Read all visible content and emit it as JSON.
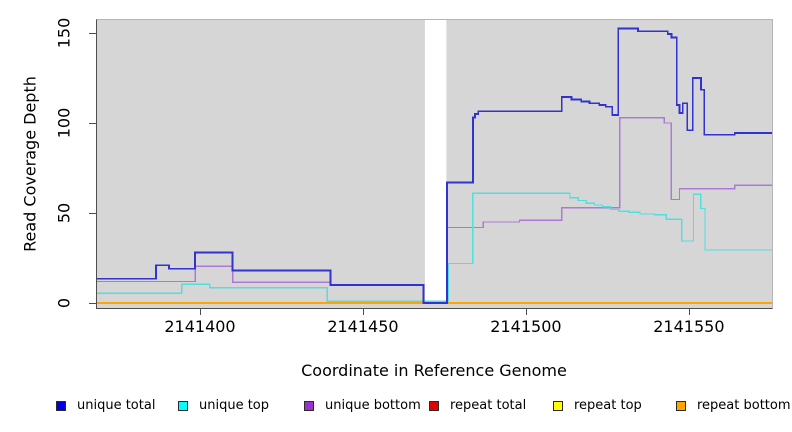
{
  "figure": {
    "ylabel": "Read Coverage Depth",
    "xlabel": "Coordinate in Reference Genome"
  },
  "axes": {
    "x": {
      "ticks": [
        {
          "label": "2141400",
          "value": 2141400
        },
        {
          "label": "2141450",
          "value": 2141450
        },
        {
          "label": "2141500",
          "value": 2141500
        },
        {
          "label": "2141550",
          "value": 2141550
        }
      ]
    },
    "y": {
      "ticks": [
        {
          "label": "0",
          "value": 0
        },
        {
          "label": "50",
          "value": 50
        },
        {
          "label": "100",
          "value": 100
        },
        {
          "label": "150",
          "value": 150
        }
      ]
    }
  },
  "legend": {
    "items": [
      {
        "label": "unique total",
        "swatch_color": "#0000e0"
      },
      {
        "label": "unique top",
        "swatch_color": "#00ffff"
      },
      {
        "label": "unique bottom",
        "swatch_color": "#9933cc"
      },
      {
        "label": "repeat total",
        "swatch_color": "#e00000"
      },
      {
        "label": "repeat top",
        "swatch_color": "#ffff00"
      },
      {
        "label": "repeat bottom",
        "swatch_color": "#ffa500"
      }
    ]
  },
  "chart_data": {
    "type": "line",
    "subtype": "step",
    "title": "",
    "xlabel": "Coordinate in Reference Genome",
    "ylabel": "Read Coverage Depth",
    "xlim": [
      2141368.4,
      2141575.5
    ],
    "ylim": [
      0,
      157
    ],
    "grid": false,
    "legend_position": "bottom",
    "plot_bg": "#d6d6d6",
    "gap_region": [
      2141469.0,
      2141475.6
    ],
    "series": [
      {
        "name": "repeat total",
        "color": "#e00000",
        "points": [
          [
            2141368.4,
            0
          ]
        ]
      },
      {
        "name": "repeat top",
        "color": "#ffff00",
        "points": [
          [
            2141368.4,
            0
          ]
        ]
      },
      {
        "name": "repeat bottom",
        "color": "#ffa500",
        "points": [
          [
            2141368.4,
            0
          ]
        ]
      },
      {
        "name": "unique bottom",
        "color": "#ae79d6",
        "points": [
          [
            2141368.4,
            12
          ],
          [
            2141398.5,
            20.5
          ],
          [
            2141410,
            11.5
          ],
          [
            2141440,
            10
          ],
          [
            2141468.6,
            0
          ],
          [
            2141475.7,
            42
          ],
          [
            2141486.9,
            45
          ],
          [
            2141498,
            46
          ],
          [
            2141511,
            53
          ],
          [
            2141528.8,
            103
          ],
          [
            2141542.4,
            100
          ],
          [
            2141544.6,
            57.5
          ],
          [
            2141547.1,
            63.5
          ],
          [
            2141564.1,
            65.5
          ]
        ]
      },
      {
        "name": "unique top",
        "color": "#52dede",
        "points": [
          [
            2141368.4,
            5.5
          ],
          [
            2141394.4,
            10.5
          ],
          [
            2141403,
            8.5
          ],
          [
            2141439,
            1
          ],
          [
            2141476.2,
            22
          ],
          [
            2141483.7,
            61
          ],
          [
            2141513.5,
            58.5
          ],
          [
            2141516,
            57
          ],
          [
            2141518.5,
            55.5
          ],
          [
            2141521,
            54.5
          ],
          [
            2141523.5,
            53.5
          ],
          [
            2141526,
            52
          ],
          [
            2141528.5,
            51
          ],
          [
            2141531.5,
            50.5
          ],
          [
            2141535,
            49.5
          ],
          [
            2141539.5,
            49
          ],
          [
            2141543,
            46.5
          ],
          [
            2141547.8,
            34.5
          ],
          [
            2141551.4,
            60.5
          ],
          [
            2141553.6,
            52.5
          ],
          [
            2141554.9,
            29.5
          ]
        ]
      },
      {
        "name": "unique total",
        "color": "#3232ce",
        "points": [
          [
            2141368.4,
            13.5
          ],
          [
            2141386.5,
            21
          ],
          [
            2141390.5,
            19
          ],
          [
            2141398.5,
            28
          ],
          [
            2141410,
            18
          ],
          [
            2141440,
            10
          ],
          [
            2141468.6,
            0
          ],
          [
            2141475.8,
            67
          ],
          [
            2141483.8,
            103
          ],
          [
            2141484.4,
            105
          ],
          [
            2141485.4,
            106.5
          ],
          [
            2141511,
            114.5
          ],
          [
            2141514,
            113
          ],
          [
            2141517,
            112
          ],
          [
            2141519.5,
            111
          ],
          [
            2141522.5,
            110
          ],
          [
            2141524.5,
            109
          ],
          [
            2141526.5,
            104.5
          ],
          [
            2141528.3,
            152.5
          ],
          [
            2141534.4,
            151
          ],
          [
            2141543.5,
            149.5
          ],
          [
            2141544.7,
            147.5
          ],
          [
            2141546.3,
            110
          ],
          [
            2141547.1,
            105.5
          ],
          [
            2141548.1,
            111
          ],
          [
            2141549.5,
            96
          ],
          [
            2141551.2,
            125
          ],
          [
            2141553.7,
            118.5
          ],
          [
            2141554.7,
            93.5
          ],
          [
            2141564.1,
            94.5
          ]
        ]
      }
    ]
  }
}
